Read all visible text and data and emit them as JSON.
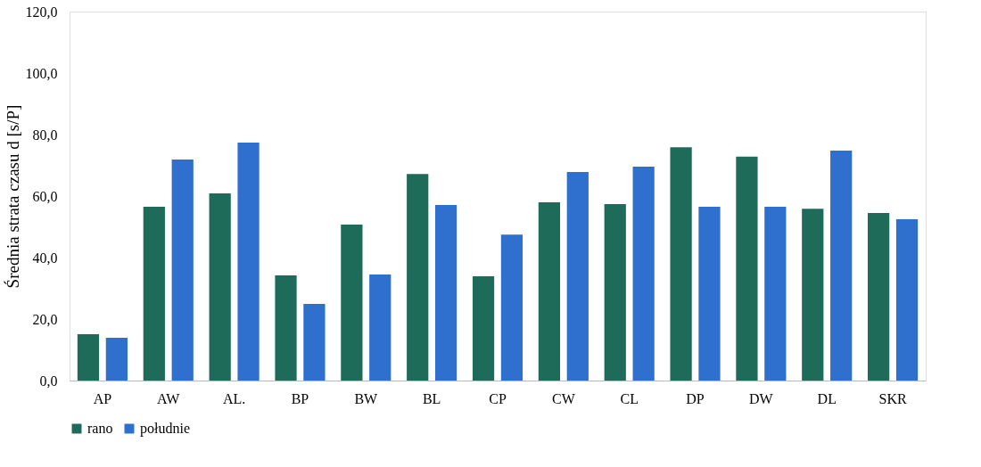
{
  "chart_data": {
    "type": "bar",
    "ylabel": "Średnia strata czasu d [s/P]",
    "categories": [
      "AP",
      "AW",
      "AL.",
      "BP",
      "BW",
      "BL",
      "CP",
      "CW",
      "CL",
      "DP",
      "DW",
      "DL",
      "SKR"
    ],
    "series": [
      {
        "name": "rano",
        "color": "#1e6b5a",
        "values": [
          15.1,
          56.5,
          60.9,
          34.2,
          50.7,
          67.2,
          33.9,
          58.0,
          57.4,
          75.9,
          72.8,
          55.9,
          54.5
        ]
      },
      {
        "name": "południe",
        "color": "#2f6fce",
        "values": [
          13.9,
          71.9,
          77.4,
          24.9,
          34.5,
          57.1,
          47.5,
          67.8,
          69.6,
          56.5,
          56.5,
          74.8,
          52.5
        ]
      }
    ],
    "ylim": [
      0,
      120
    ],
    "yticks": [
      {
        "value": 0,
        "label": "0,0"
      },
      {
        "value": 20,
        "label": "20,0"
      },
      {
        "value": 40,
        "label": "40,0"
      },
      {
        "value": 60,
        "label": "60,0"
      },
      {
        "value": 80,
        "label": "80,0"
      },
      {
        "value": 100,
        "label": "100,0"
      },
      {
        "value": 120,
        "label": "120,0"
      }
    ],
    "grid": false,
    "legend": "bottom"
  }
}
